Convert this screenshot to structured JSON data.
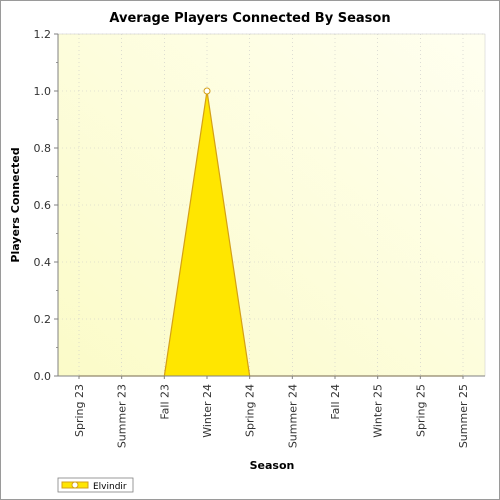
{
  "chart_data": {
    "type": "area",
    "title": "Average Players Connected By Season",
    "xlabel": "Season",
    "ylabel": "Players Connected",
    "categories": [
      "Spring 23",
      "Summer 23",
      "Fall 23",
      "Winter 24",
      "Spring 24",
      "Summer 24",
      "Fall 24",
      "Winter 25",
      "Spring 25",
      "Summer 25"
    ],
    "y_ticks": [
      "0.0",
      "0.2",
      "0.4",
      "0.6",
      "0.8",
      "1.0",
      "1.2"
    ],
    "ylim": [
      0,
      1.2
    ],
    "grid": true,
    "legend_position": "bottom-left",
    "series": [
      {
        "name": "Elvindir",
        "values": [
          0,
          0,
          0,
          1,
          0,
          0,
          0,
          0,
          0,
          0
        ]
      }
    ],
    "colors": {
      "fill": "#ffe600",
      "line": "#d4a017",
      "marker_fill": "#ffffff",
      "plot_bg_from": "#fafad2",
      "plot_bg_to": "#ffffff"
    }
  }
}
